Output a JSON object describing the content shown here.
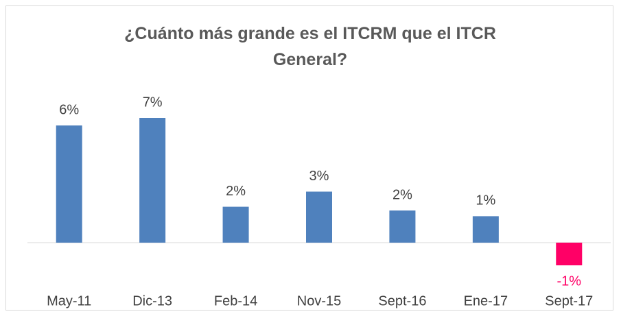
{
  "chart_data": {
    "type": "bar",
    "title": "¿Cuánto más grande es el ITCRM que el ITCR General?",
    "categories": [
      "May-11",
      "Dic-13",
      "Feb-14",
      "Nov-15",
      "Sept-16",
      "Ene-17",
      "Sept-17"
    ],
    "values": [
      6.2,
      6.6,
      1.9,
      2.7,
      1.7,
      1.4,
      -1.2
    ],
    "value_labels": [
      "6%",
      "7%",
      "2%",
      "3%",
      "2%",
      "1%",
      "-1%"
    ],
    "color": "#4f81bd",
    "negative_color": "#ff0066"
  }
}
